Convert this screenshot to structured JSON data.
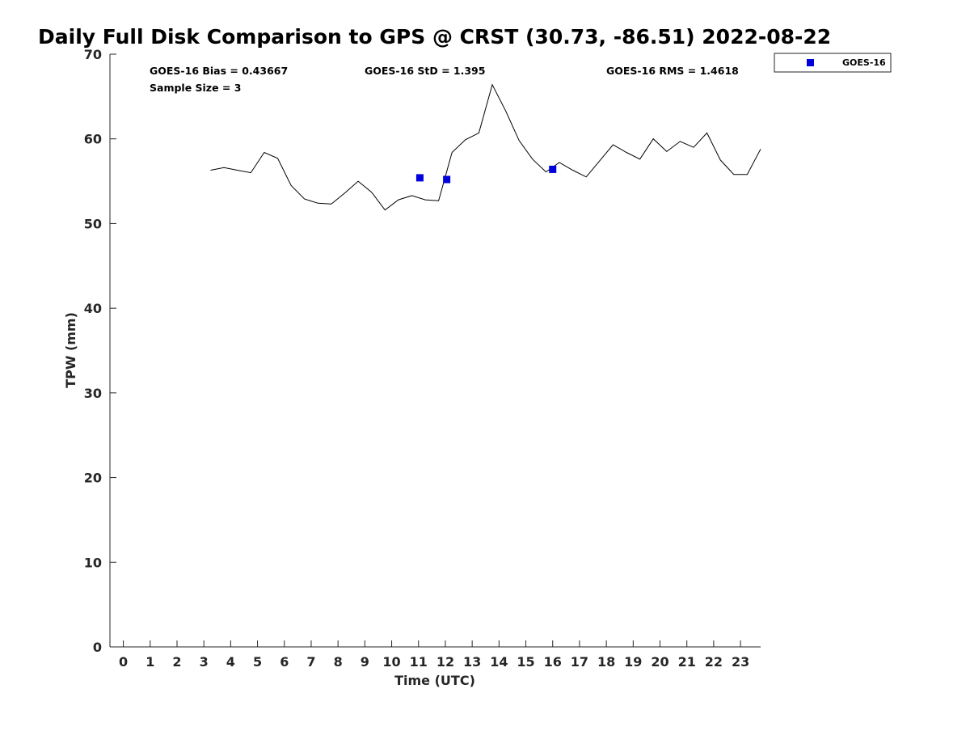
{
  "chart_data": {
    "type": "line",
    "title": "Daily Full Disk Comparison to GPS @ CRST (30.73, -86.51) 2022-08-22",
    "xlabel": "Time (UTC)",
    "ylabel": "TPW (mm)",
    "xlim": [
      -0.5,
      23.75
    ],
    "ylim": [
      0,
      70
    ],
    "xticks": [
      0,
      1,
      2,
      3,
      4,
      5,
      6,
      7,
      8,
      9,
      10,
      11,
      12,
      13,
      14,
      15,
      16,
      17,
      18,
      19,
      20,
      21,
      22,
      23
    ],
    "yticks": [
      0,
      10,
      20,
      30,
      40,
      50,
      60,
      70
    ],
    "grid": false,
    "legend": {
      "placement": "top-right",
      "entries": [
        "GOES-16"
      ]
    },
    "stats": {
      "bias": "GOES-16 Bias = 0.43667",
      "std": "GOES-16 StD = 1.395",
      "rms": "GOES-16 RMS = 1.4618",
      "sample": "Sample Size = 3"
    },
    "series": [
      {
        "kind": "line",
        "color": "#000000",
        "x": [
          3.25,
          3.75,
          4.25,
          4.75,
          5.25,
          5.75,
          6.25,
          6.75,
          7.25,
          7.75,
          8.25,
          8.75,
          9.25,
          9.75,
          10.25,
          10.75,
          11.25,
          11.75,
          12.25,
          12.75,
          13.25,
          13.75,
          14.25,
          14.75,
          15.25,
          15.75,
          16.25,
          16.75,
          17.25,
          17.75,
          18.25,
          18.75,
          19.25,
          19.75,
          20.25,
          20.75,
          21.25,
          21.75,
          22.25,
          22.75,
          23.25,
          23.75
        ],
        "y": [
          56.3,
          56.6,
          56.3,
          56.0,
          58.4,
          57.7,
          54.5,
          52.9,
          52.4,
          52.3,
          53.6,
          55.0,
          53.7,
          51.6,
          52.8,
          53.3,
          52.8,
          52.7,
          58.4,
          59.9,
          60.7,
          66.4,
          63.3,
          59.8,
          57.6,
          56.1,
          57.2,
          56.3,
          55.5,
          57.4,
          59.3,
          58.4,
          57.6,
          60.0,
          58.5,
          59.7,
          59.0,
          60.7,
          57.5,
          55.8,
          55.8,
          58.8
        ]
      },
      {
        "kind": "scatter",
        "name": "GOES-16",
        "color": "#0000dd",
        "x": [
          11.05,
          12.05,
          16.0
        ],
        "y": [
          55.4,
          55.2,
          56.4
        ]
      }
    ]
  }
}
